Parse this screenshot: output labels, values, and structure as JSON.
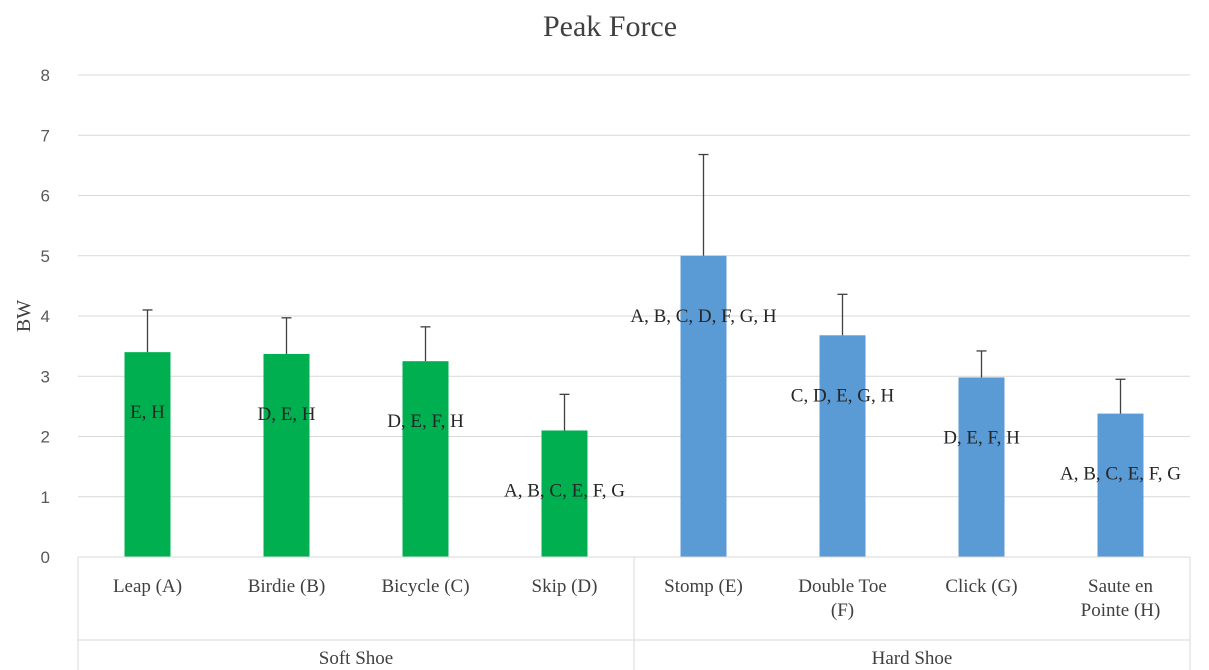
{
  "chart_data": {
    "type": "bar",
    "title": "Peak Force",
    "xlabel": "",
    "ylabel": "BW",
    "ylim": [
      0,
      8
    ],
    "yticks": [
      "0",
      "1",
      "2",
      "3",
      "4",
      "5",
      "6",
      "7",
      "8"
    ],
    "grid": true,
    "groups": [
      {
        "label": "Soft Shoe",
        "color": "#00B050",
        "bars": [
          {
            "label": "Leap (A)",
            "value": 3.4,
            "error": 0.7,
            "annotation": "E, H"
          },
          {
            "label": "Birdie (B)",
            "value": 3.37,
            "error": 0.6,
            "annotation": "D, E, H"
          },
          {
            "label": "Bicycle (C)",
            "value": 3.25,
            "error": 0.57,
            "annotation": "D, E, F, H"
          },
          {
            "label": "Skip (D)",
            "value": 2.1,
            "error": 0.6,
            "annotation": "A, B, C, E, F, G"
          }
        ]
      },
      {
        "label": "Hard Shoe",
        "color": "#5B9BD5",
        "bars": [
          {
            "label": "Stomp (E)",
            "value": 5.0,
            "error": 1.68,
            "annotation": "A, B, C, D, F, G, H"
          },
          {
            "label": "Double Toe (F)",
            "value": 3.68,
            "error": 0.68,
            "annotation": "C, D, E, G, H"
          },
          {
            "label": "Click (G)",
            "value": 2.98,
            "error": 0.44,
            "annotation": "D, E, F, H"
          },
          {
            "label": "Saute en Pointe (H)",
            "value": 2.38,
            "error": 0.57,
            "annotation": "A, B, C, E, F, G"
          }
        ]
      }
    ]
  }
}
